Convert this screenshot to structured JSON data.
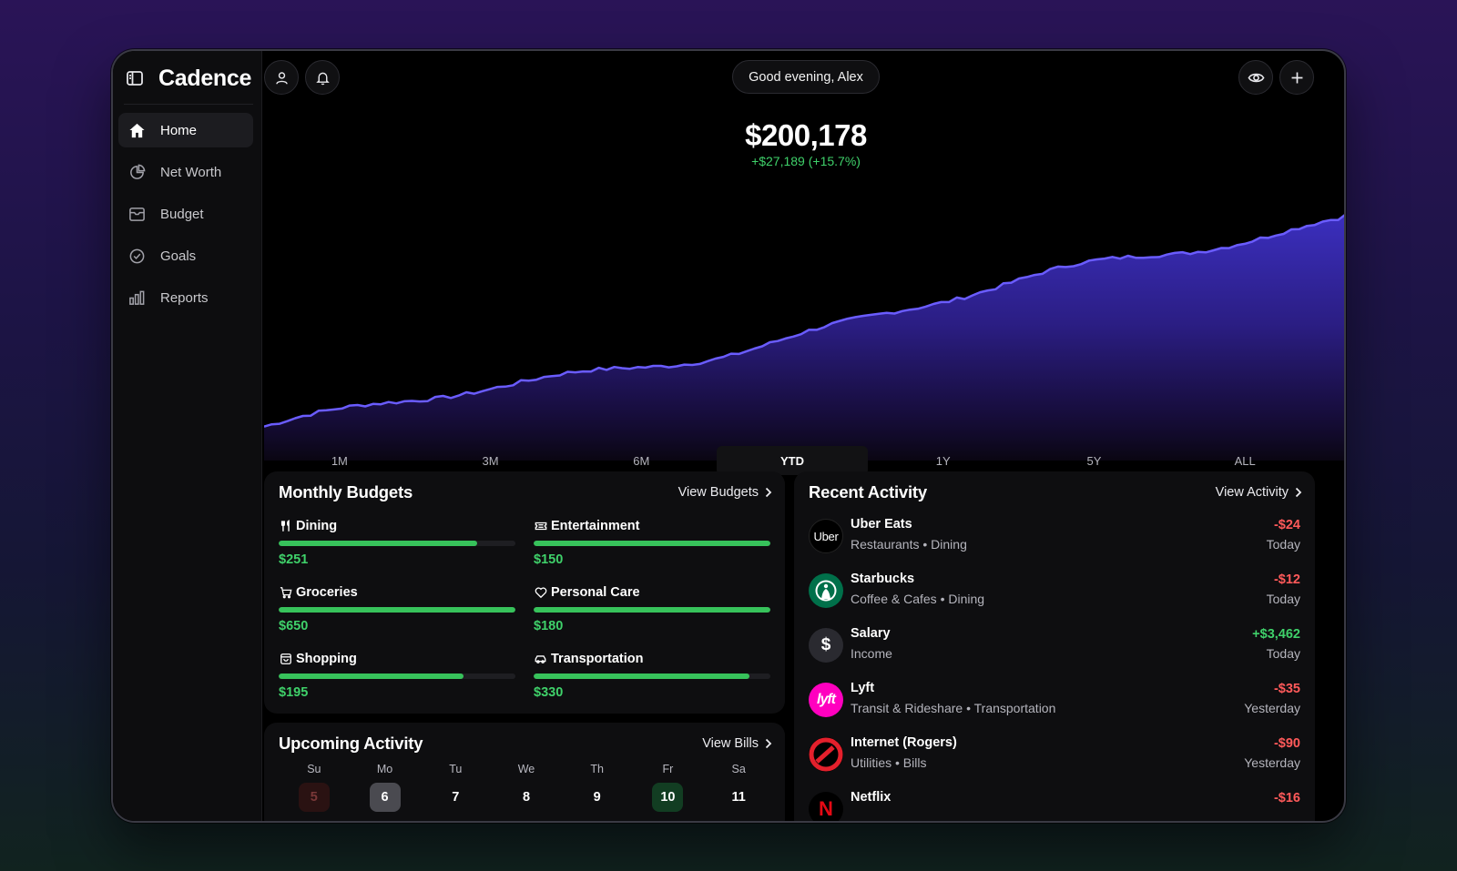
{
  "app": {
    "title": "Cadence"
  },
  "sidebar": {
    "items": [
      {
        "label": "Home",
        "icon": "home-icon",
        "active": true
      },
      {
        "label": "Net Worth",
        "icon": "pie-chart-icon",
        "active": false
      },
      {
        "label": "Budget",
        "icon": "wallet-icon",
        "active": false
      },
      {
        "label": "Goals",
        "icon": "check-circle-icon",
        "active": false
      },
      {
        "label": "Reports",
        "icon": "bar-chart-icon",
        "active": false
      }
    ]
  },
  "header": {
    "greeting": "Good evening, Alex"
  },
  "networth": {
    "value": "$200,178",
    "change": "+$27,189 (+15.7%)",
    "accent": "#5b4dff",
    "positive_color": "#3fd16a"
  },
  "chart_data": {
    "type": "area",
    "x_start": 0,
    "x_end": 1,
    "values": [
      172989,
      200178
    ],
    "trend": "increasing"
  },
  "ranges": [
    {
      "label": "1M",
      "active": false
    },
    {
      "label": "3M",
      "active": false
    },
    {
      "label": "6M",
      "active": false
    },
    {
      "label": "YTD",
      "active": true
    },
    {
      "label": "1Y",
      "active": false
    },
    {
      "label": "5Y",
      "active": false
    },
    {
      "label": "ALL",
      "active": false
    }
  ],
  "budgets": {
    "title": "Monthly Budgets",
    "link": "View Budgets",
    "items": [
      {
        "name": "Dining",
        "amount": "$251",
        "progress": 0.84,
        "icon": "utensils-icon"
      },
      {
        "name": "Entertainment",
        "amount": "$150",
        "progress": 1.0,
        "icon": "ticket-icon"
      },
      {
        "name": "Groceries",
        "amount": "$650",
        "progress": 1.0,
        "icon": "cart-icon"
      },
      {
        "name": "Personal Care",
        "amount": "$180",
        "progress": 1.0,
        "icon": "heart-icon"
      },
      {
        "name": "Shopping",
        "amount": "$195",
        "progress": 0.78,
        "icon": "bag-icon"
      },
      {
        "name": "Transportation",
        "amount": "$330",
        "progress": 0.91,
        "icon": "car-icon"
      }
    ]
  },
  "upcoming": {
    "title": "Upcoming Activity",
    "link": "View Bills",
    "weekdays": [
      "Su",
      "Mo",
      "Tu",
      "We",
      "Th",
      "Fr",
      "Sa"
    ],
    "days": [
      {
        "num": "5",
        "state": "past"
      },
      {
        "num": "6",
        "state": "today"
      },
      {
        "num": "7",
        "state": "normal"
      },
      {
        "num": "8",
        "state": "normal"
      },
      {
        "num": "9",
        "state": "normal"
      },
      {
        "num": "10",
        "state": "bill"
      },
      {
        "num": "11",
        "state": "normal"
      }
    ]
  },
  "activity": {
    "title": "Recent Activity",
    "link": "View Activity",
    "items": [
      {
        "name": "Uber Eats",
        "sub": "Restaurants • Dining",
        "amount": "-$24",
        "when": "Today",
        "logo": "uber-logo-icon",
        "positive": false
      },
      {
        "name": "Starbucks",
        "sub": "Coffee & Cafes • Dining",
        "amount": "-$12",
        "when": "Today",
        "logo": "starbucks-logo-icon",
        "positive": false
      },
      {
        "name": "Salary",
        "sub": "Income",
        "amount": "+$3,462",
        "when": "Today",
        "logo": "dollar-icon",
        "positive": true
      },
      {
        "name": "Lyft",
        "sub": "Transit & Rideshare • Transportation",
        "amount": "-$35",
        "when": "Yesterday",
        "logo": "lyft-logo-icon",
        "positive": false
      },
      {
        "name": "Internet (Rogers)",
        "sub": "Utilities • Bills",
        "amount": "-$90",
        "when": "Yesterday",
        "logo": "rogers-logo-icon",
        "positive": false
      },
      {
        "name": "Netflix",
        "sub": "",
        "amount": "-$16",
        "when": "",
        "logo": "netflix-logo-icon",
        "positive": false
      }
    ]
  }
}
